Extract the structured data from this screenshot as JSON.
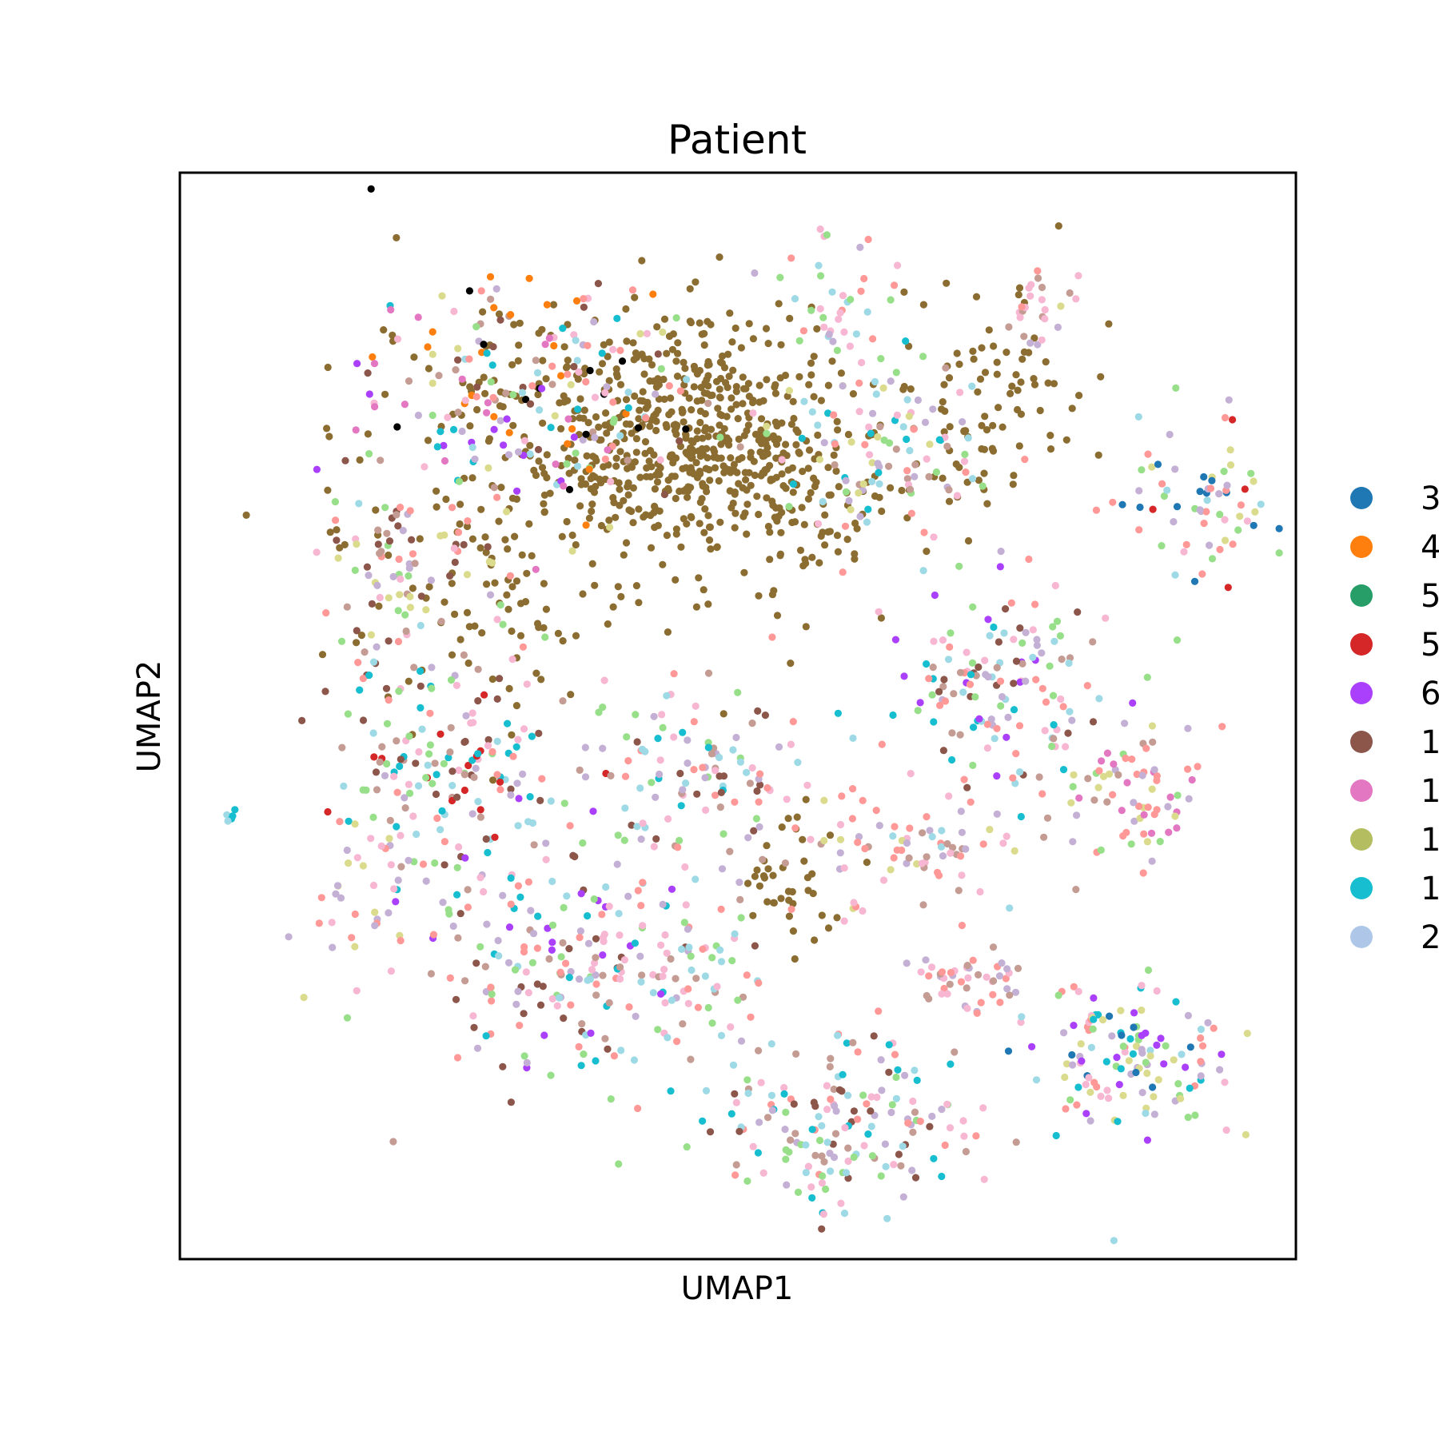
{
  "chart_data": {
    "type": "scatter",
    "title": "Patient",
    "xlabel": "UMAP1",
    "ylabel": "UMAP2",
    "xlim": [
      -10,
      10
    ],
    "ylim": [
      -10,
      10
    ],
    "grid": false,
    "ticks": false,
    "legend_position": "right",
    "legend": [
      {
        "label": "3",
        "color": "#1f77b4"
      },
      {
        "label": "4",
        "color": "#ff7f0e"
      },
      {
        "label": "5",
        "color": "#279e68"
      },
      {
        "label": "5",
        "color": "#d62728"
      },
      {
        "label": "6",
        "color": "#aa40fc"
      },
      {
        "label": "1",
        "color": "#8c564b"
      },
      {
        "label": "1",
        "color": "#e377c2"
      },
      {
        "label": "1",
        "color": "#b5bd61"
      },
      {
        "label": "1",
        "color": "#17becf"
      },
      {
        "label": "2",
        "color": "#aec7e8"
      }
    ],
    "extra_colors": [
      "#ff9896",
      "#c5b0d5",
      "#98df8a",
      "#f7b6d2",
      "#9edae5",
      "#dbdb8d",
      "#c49c94",
      "#8c6d31"
    ],
    "clusters": [
      {
        "x": -0.8,
        "y": 5.0,
        "sx": 1.3,
        "sy": 1.1,
        "n": 520,
        "colors": [
          17
        ]
      },
      {
        "x": -3.5,
        "y": 5.5,
        "sx": 1.6,
        "sy": 1.2,
        "n": 150,
        "colors": [
          17
        ]
      },
      {
        "x": -4.5,
        "y": 2.2,
        "sx": 1.5,
        "sy": 1.0,
        "n": 80,
        "colors": [
          17
        ]
      },
      {
        "x": 4.5,
        "y": 6.0,
        "sx": 0.9,
        "sy": 1.2,
        "n": 90,
        "colors": [
          17
        ]
      },
      {
        "x": 1.3,
        "y": 3.5,
        "sx": 0.7,
        "sy": 0.7,
        "n": 60,
        "colors": [
          17
        ]
      },
      {
        "x": 1.0,
        "y": -3.0,
        "sx": 0.5,
        "sy": 0.6,
        "n": 40,
        "colors": [
          17
        ]
      },
      {
        "x": -3.8,
        "y": 5.8,
        "sx": 1.4,
        "sy": 1.1,
        "n": 200,
        "colors": [
          10,
          11,
          12,
          13,
          14,
          19,
          8,
          16,
          15,
          5,
          6,
          4,
          1
        ]
      },
      {
        "x": -6.0,
        "y": 2.5,
        "sx": 0.8,
        "sy": 1.0,
        "n": 90,
        "colors": [
          10,
          11,
          12,
          15,
          16,
          13,
          5
        ]
      },
      {
        "x": -5.2,
        "y": -0.8,
        "sx": 1.1,
        "sy": 1.0,
        "n": 170,
        "colors": [
          10,
          11,
          12,
          13,
          14,
          16,
          8,
          5,
          3
        ]
      },
      {
        "x": -3.0,
        "y": -4.5,
        "sx": 1.4,
        "sy": 1.2,
        "n": 200,
        "colors": [
          10,
          11,
          12,
          13,
          14,
          16,
          8,
          5,
          4
        ]
      },
      {
        "x": -6.8,
        "y": -3.5,
        "sx": 0.6,
        "sy": 0.8,
        "n": 35,
        "colors": [
          10,
          11,
          13,
          15
        ]
      },
      {
        "x": -0.7,
        "y": -1.0,
        "sx": 1.0,
        "sy": 0.9,
        "n": 110,
        "colors": [
          10,
          11,
          12,
          13,
          14,
          16,
          8,
          5
        ]
      },
      {
        "x": 1.6,
        "y": 7.6,
        "sx": 0.6,
        "sy": 0.6,
        "n": 40,
        "colors": [
          10,
          11,
          12,
          13,
          14
        ]
      },
      {
        "x": 2.6,
        "y": 4.8,
        "sx": 0.9,
        "sy": 0.9,
        "n": 110,
        "colors": [
          10,
          11,
          12,
          13,
          14,
          15,
          8,
          16
        ]
      },
      {
        "x": 4.6,
        "y": 0.4,
        "sx": 1.0,
        "sy": 0.9,
        "n": 150,
        "colors": [
          10,
          11,
          12,
          13,
          14,
          8,
          16,
          5,
          4
        ]
      },
      {
        "x": 3.3,
        "y": -2.5,
        "sx": 1.2,
        "sy": 0.6,
        "n": 80,
        "colors": [
          10,
          11,
          13,
          14,
          15,
          16
        ]
      },
      {
        "x": 4.3,
        "y": -5.0,
        "sx": 0.8,
        "sy": 0.3,
        "n": 50,
        "colors": [
          10,
          13,
          11,
          16
        ]
      },
      {
        "x": 1.9,
        "y": -7.4,
        "sx": 1.1,
        "sy": 0.8,
        "n": 170,
        "colors": [
          10,
          11,
          13,
          14,
          12,
          16,
          8,
          5
        ]
      },
      {
        "x": 7.2,
        "y": -6.3,
        "sx": 0.8,
        "sy": 0.7,
        "n": 130,
        "colors": [
          10,
          11,
          12,
          13,
          14,
          8,
          15,
          0,
          4
        ]
      },
      {
        "x": 7.2,
        "y": -1.4,
        "sx": 0.6,
        "sy": 0.6,
        "n": 70,
        "colors": [
          10,
          11,
          12,
          15,
          16,
          6
        ]
      },
      {
        "x": 8.3,
        "y": 3.8,
        "sx": 0.8,
        "sy": 0.8,
        "n": 70,
        "colors": [
          10,
          11,
          12,
          13,
          14,
          15,
          3,
          0
        ]
      },
      {
        "x": 5.3,
        "y": 7.5,
        "sx": 0.4,
        "sy": 0.3,
        "n": 25,
        "colors": [
          10,
          11,
          13,
          15,
          16
        ]
      },
      {
        "x": -0.9,
        "y": -4.8,
        "sx": 0.6,
        "sy": 0.9,
        "n": 55,
        "colors": [
          10,
          11,
          12,
          13,
          14,
          16
        ]
      },
      {
        "x": -9.1,
        "y": -1.8,
        "sx": 0.1,
        "sy": 0.1,
        "n": 5,
        "colors": [
          8,
          14
        ]
      }
    ]
  }
}
